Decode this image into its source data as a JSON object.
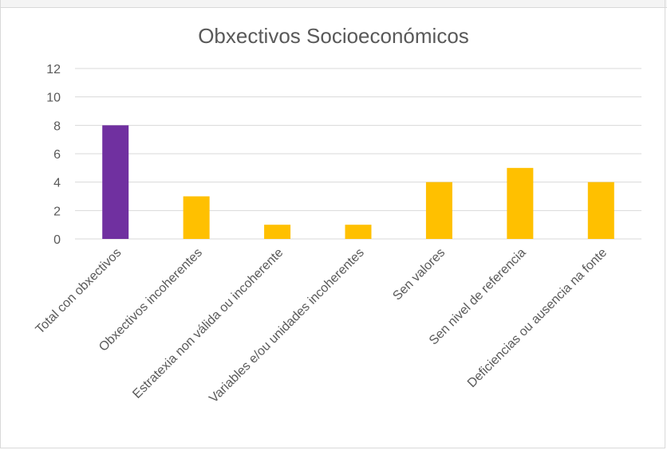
{
  "chart_data": {
    "type": "bar",
    "title": "Obxectivos Socioeconómicos",
    "categories": [
      "Total con obxectivos",
      "Obxectivos incoherentes",
      "Estratexia non válida ou incoherente",
      "Variables e/ou unidades incoherentes",
      "Sen valores",
      "Sen nivel de referencia",
      "Deficiencias ou ausencia na fonte"
    ],
    "values": [
      8,
      3,
      1,
      1,
      4,
      5,
      4
    ],
    "bar_colors": [
      "#7030a0",
      "#ffc000",
      "#ffc000",
      "#ffc000",
      "#ffc000",
      "#ffc000",
      "#ffc000"
    ],
    "ylim": [
      0,
      12
    ],
    "yticks": [
      "0",
      "2",
      "4",
      "6",
      "8",
      "10",
      "12"
    ],
    "grid": true,
    "xlabel": "",
    "ylabel": "",
    "gridline_color": "#d9d9d9",
    "text_color": "#595959"
  }
}
